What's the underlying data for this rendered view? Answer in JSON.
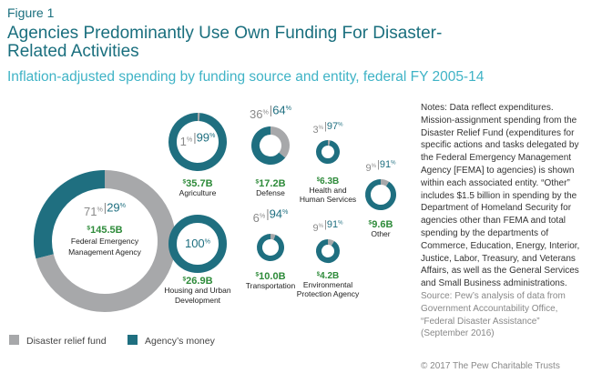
{
  "figure_label": "Figure 1",
  "title": "Agencies Predominantly Use Own Funding For Disaster-Related Activities",
  "subtitle": "Inflation-adjusted spending by funding source and entity, federal FY 2005-14",
  "notes": "Notes: Data reflect expenditures. Mission-assignment spending from the Disaster Relief Fund (expenditures for specific actions and tasks delegated by the Federal Emergency Management Agency [FEMA] to agencies) is shown within each associated entity. “Other” includes $1.5 billion in spending by the Department of Homeland Security for agencies other than FEMA and total spending by the departments of Commerce, Education, Energy, Interior, Justice, Labor, Treasury, and Veterans Affairs, as well as the General Services and Small Business administrations.",
  "source": "Source: Pew’s analysis of data from Government Accountability Office, “Federal Disaster Assistance” (September 2016)",
  "copyright": "© 2017 The Pew Charitable Trusts",
  "colors": {
    "disaster_relief_fund": "#a7a8aa",
    "agency_money": "#1f6f80",
    "title": "#1a6f7e",
    "subtitle": "#3fb3c6",
    "amount": "#2e8b3a"
  },
  "chart_data": {
    "type": "pie",
    "legend": [
      "Disaster relief fund",
      "Agency’s money"
    ],
    "legend_position": "bottom-left",
    "entities": [
      {
        "name": "Federal Emergency Management Agency",
        "amount": "$145.5B",
        "pct_label": [
          "71",
          "29"
        ],
        "disaster_relief_fund_pct": 71,
        "agency_money_pct": 29
      },
      {
        "name": "Agriculture",
        "amount": "$35.7B",
        "pct_label": [
          "1",
          "99"
        ],
        "disaster_relief_fund_pct": 1,
        "agency_money_pct": 99
      },
      {
        "name": "Housing and Urban Development",
        "amount": "$26.9B",
        "pct_label": [
          "100"
        ],
        "disaster_relief_fund_pct": 0,
        "agency_money_pct": 100
      },
      {
        "name": "Defense",
        "amount": "$17.2B",
        "pct_label": [
          "36",
          "64"
        ],
        "disaster_relief_fund_pct": 36,
        "agency_money_pct": 64
      },
      {
        "name": "Transportation",
        "amount": "$10.0B",
        "pct_label": [
          "6",
          "94"
        ],
        "disaster_relief_fund_pct": 6,
        "agency_money_pct": 94
      },
      {
        "name": "Health and Human Services",
        "amount": "$6.3B",
        "pct_label": [
          "3",
          "97"
        ],
        "disaster_relief_fund_pct": 3,
        "agency_money_pct": 97
      },
      {
        "name": "Environmental Protection Agency",
        "amount": "$4.2B",
        "pct_label": [
          "9",
          "91"
        ],
        "disaster_relief_fund_pct": 9,
        "agency_money_pct": 91
      },
      {
        "name": "Other",
        "amount": "$9.6B",
        "pct_label": [
          "9",
          "91"
        ],
        "disaster_relief_fund_pct": 9,
        "agency_money_pct": 91
      }
    ]
  }
}
